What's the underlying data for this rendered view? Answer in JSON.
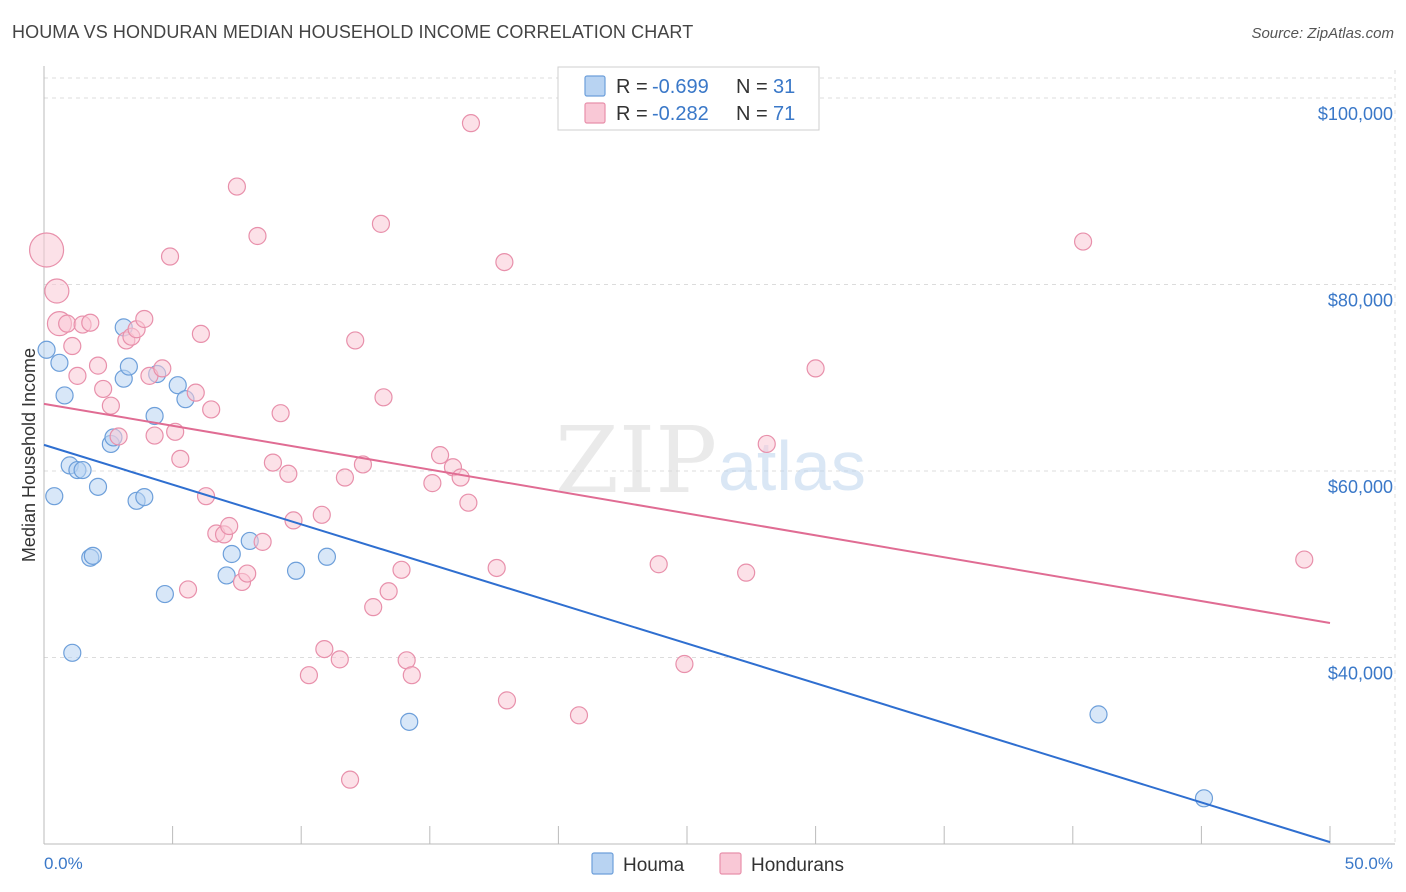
{
  "title": "HOUMA VS HONDURAN MEDIAN HOUSEHOLD INCOME CORRELATION CHART",
  "source": "Source: ZipAtlas.com",
  "watermark": {
    "zip": "ZIP",
    "atlas": "atlas"
  },
  "colors": {
    "houma_fill": "#b8d3f2",
    "houma_stroke": "#6d9fda",
    "houma_line": "#2f6fd0",
    "hond_fill": "#f9c8d6",
    "hond_stroke": "#e890ab",
    "hond_line": "#e06c93",
    "axis_text": "#3a78c8",
    "grid": "#dcdcdc"
  },
  "legend": {
    "rows": [
      {
        "r_label": "R =",
        "r_value": "-0.699",
        "n_label": "N =",
        "n_value": "31"
      },
      {
        "r_label": "R =",
        "r_value": "-0.282",
        "n_label": "N =",
        "n_value": "71"
      }
    ]
  },
  "bottom_legend": {
    "houma": "Houma",
    "hondurans": "Hondurans"
  },
  "chart_data": {
    "type": "scatter",
    "title": "HOUMA VS HONDURAN MEDIAN HOUSEHOLD INCOME CORRELATION CHART",
    "xlabel": "",
    "ylabel": "Median Household Income",
    "xlim": [
      0,
      50
    ],
    "ylim": [
      20000,
      103000
    ],
    "x_tick_labels": [
      "0.0%",
      "50.0%"
    ],
    "y_ticks": [
      40000,
      60000,
      80000,
      100000
    ],
    "y_tick_labels": [
      "$40,000",
      "$60,000",
      "$80,000",
      "$100,000"
    ],
    "grid": true,
    "legend_position": "top-center",
    "series": [
      {
        "name": "Houma",
        "r": -0.699,
        "n": 31,
        "trend": {
          "x": [
            0,
            50
          ],
          "y": [
            62800,
            20200
          ]
        },
        "points": [
          [
            0.1,
            73000,
            1
          ],
          [
            0.4,
            57300,
            1
          ],
          [
            0.6,
            71600,
            1
          ],
          [
            0.8,
            68100,
            1
          ],
          [
            1.0,
            60600,
            1
          ],
          [
            1.1,
            40500,
            1
          ],
          [
            1.3,
            60100,
            1
          ],
          [
            1.5,
            60100,
            1
          ],
          [
            1.8,
            50700,
            1
          ],
          [
            1.9,
            50900,
            1
          ],
          [
            2.1,
            58300,
            1
          ],
          [
            2.6,
            62900,
            1
          ],
          [
            2.7,
            63600,
            1
          ],
          [
            3.1,
            75400,
            1
          ],
          [
            3.1,
            69900,
            1
          ],
          [
            3.3,
            71200,
            1
          ],
          [
            3.6,
            56800,
            1
          ],
          [
            3.9,
            57200,
            1
          ],
          [
            4.3,
            65900,
            1
          ],
          [
            4.4,
            70400,
            1
          ],
          [
            4.7,
            46800,
            1
          ],
          [
            5.2,
            69200,
            1
          ],
          [
            5.5,
            67700,
            1
          ],
          [
            7.1,
            48800,
            1
          ],
          [
            7.3,
            51100,
            1
          ],
          [
            8.0,
            52500,
            1
          ],
          [
            9.8,
            49300,
            1
          ],
          [
            11.0,
            50800,
            1
          ],
          [
            14.2,
            33100,
            1
          ],
          [
            41.0,
            33900,
            1
          ],
          [
            45.1,
            24900,
            1
          ]
        ]
      },
      {
        "name": "Hondurans",
        "r": -0.282,
        "n": 71,
        "trend": {
          "x": [
            0,
            50
          ],
          "y": [
            67200,
            43700
          ]
        },
        "points": [
          [
            0.1,
            83700,
            3
          ],
          [
            0.5,
            79300,
            2
          ],
          [
            0.6,
            75800,
            2
          ],
          [
            0.9,
            75800,
            1
          ],
          [
            1.1,
            73400,
            1
          ],
          [
            1.3,
            70200,
            1
          ],
          [
            1.5,
            75700,
            1
          ],
          [
            1.8,
            75900,
            1
          ],
          [
            2.1,
            71300,
            1
          ],
          [
            2.3,
            68800,
            1
          ],
          [
            2.6,
            67000,
            1
          ],
          [
            2.9,
            63700,
            1
          ],
          [
            3.2,
            74000,
            1
          ],
          [
            3.4,
            74400,
            1
          ],
          [
            3.6,
            75200,
            1
          ],
          [
            3.9,
            76300,
            1
          ],
          [
            4.1,
            70200,
            1
          ],
          [
            4.3,
            63800,
            1
          ],
          [
            4.6,
            71000,
            1
          ],
          [
            4.9,
            83000,
            1
          ],
          [
            5.1,
            64200,
            1
          ],
          [
            5.3,
            61300,
            1
          ],
          [
            5.6,
            47300,
            1
          ],
          [
            5.9,
            68400,
            1
          ],
          [
            6.1,
            74700,
            1
          ],
          [
            6.3,
            57300,
            1
          ],
          [
            6.5,
            66600,
            1
          ],
          [
            6.7,
            53300,
            1
          ],
          [
            7.0,
            53200,
            1
          ],
          [
            7.2,
            54100,
            1
          ],
          [
            7.5,
            90500,
            1
          ],
          [
            7.7,
            48100,
            1
          ],
          [
            7.9,
            49000,
            1
          ],
          [
            8.3,
            85200,
            1
          ],
          [
            8.5,
            52400,
            1
          ],
          [
            8.9,
            60900,
            1
          ],
          [
            9.2,
            66200,
            1
          ],
          [
            9.5,
            59700,
            1
          ],
          [
            9.7,
            54700,
            1
          ],
          [
            10.3,
            38100,
            1
          ],
          [
            10.8,
            55300,
            1
          ],
          [
            10.9,
            40900,
            1
          ],
          [
            11.5,
            39800,
            1
          ],
          [
            11.7,
            59300,
            1
          ],
          [
            11.9,
            26900,
            1
          ],
          [
            12.1,
            74000,
            1
          ],
          [
            12.4,
            60700,
            1
          ],
          [
            12.8,
            45400,
            1
          ],
          [
            13.1,
            86500,
            1
          ],
          [
            13.2,
            67900,
            1
          ],
          [
            13.4,
            47100,
            1
          ],
          [
            13.9,
            49400,
            1
          ],
          [
            14.1,
            39700,
            1
          ],
          [
            14.3,
            38100,
            1
          ],
          [
            15.1,
            58700,
            1
          ],
          [
            15.4,
            61700,
            1
          ],
          [
            15.9,
            60400,
            1
          ],
          [
            16.2,
            59300,
            1
          ],
          [
            16.5,
            56600,
            1
          ],
          [
            16.6,
            97300,
            1
          ],
          [
            17.6,
            49600,
            1
          ],
          [
            17.9,
            82400,
            1
          ],
          [
            18.0,
            35400,
            1
          ],
          [
            20.8,
            33800,
            1
          ],
          [
            23.9,
            50000,
            1
          ],
          [
            24.9,
            39300,
            1
          ],
          [
            27.3,
            49100,
            1
          ],
          [
            28.1,
            62900,
            1
          ],
          [
            30.0,
            71000,
            1
          ],
          [
            40.4,
            84600,
            1
          ],
          [
            49.0,
            50500,
            1
          ]
        ]
      }
    ]
  }
}
